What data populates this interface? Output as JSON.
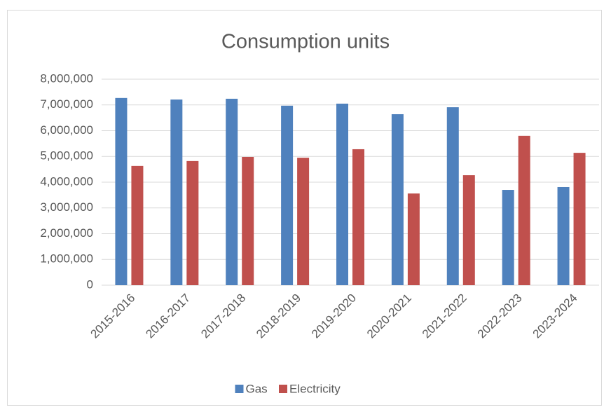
{
  "chart_data": {
    "type": "bar",
    "title": "Consumption units",
    "categories": [
      "2015-2016",
      "2016-2017",
      "2017-2018",
      "2018-2019",
      "2019-2020",
      "2020-2021",
      "2021-2022",
      "2022-2023",
      "2023-2024"
    ],
    "series": [
      {
        "name": "Gas",
        "color": "#4f81bd",
        "values": [
          7270000,
          7210000,
          7240000,
          6970000,
          7050000,
          6640000,
          6910000,
          3700000,
          3810000
        ]
      },
      {
        "name": "Electricity",
        "color": "#c0504d",
        "values": [
          4630000,
          4820000,
          4980000,
          4950000,
          5280000,
          3560000,
          4270000,
          5800000,
          5140000
        ]
      }
    ],
    "ylim": [
      0,
      8000000
    ],
    "yticks": [
      0,
      {
        "value": 1000000,
        "label": "1,000,000"
      },
      {
        "value": 2000000,
        "label": "2,000,000"
      },
      {
        "value": 3000000,
        "label": "3,000,000"
      },
      {
        "value": 4000000,
        "label": "4,000,000"
      },
      {
        "value": 5000000,
        "label": "5,000,000"
      },
      {
        "value": 6000000,
        "label": "6,000,000"
      },
      {
        "value": 7000000,
        "label": "7,000,000"
      },
      {
        "value": 8000000,
        "label": "8,000,000"
      }
    ],
    "grid": true,
    "legend": "bottom"
  }
}
